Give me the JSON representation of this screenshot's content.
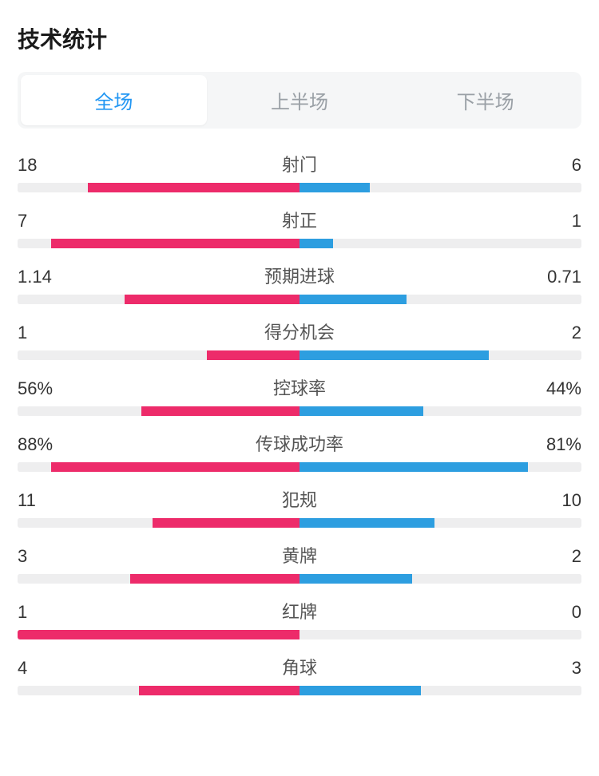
{
  "title": "技术统计",
  "tabs": [
    {
      "label": "全场",
      "active": true
    },
    {
      "label": "上半场",
      "active": false
    },
    {
      "label": "下半场",
      "active": false
    }
  ],
  "colors": {
    "left_bar": "#ed2b6a",
    "right_bar": "#2d9ee0",
    "track": "#eeeeef",
    "tab_bg": "#f5f6f7",
    "tab_active_text": "#2196f3",
    "tab_inactive_text": "#9aa0a6",
    "text": "#333333",
    "title_text": "#1a1a1a"
  },
  "typography": {
    "title_size": 28,
    "tab_size": 24,
    "value_size": 22
  },
  "stats": [
    {
      "name": "射门",
      "left_val": "18",
      "right_val": "6",
      "left_pct": 75,
      "right_pct": 25
    },
    {
      "name": "射正",
      "left_val": "7",
      "right_val": "1",
      "left_pct": 88,
      "right_pct": 12
    },
    {
      "name": "预期进球",
      "left_val": "1.14",
      "right_val": "0.71",
      "left_pct": 62,
      "right_pct": 38
    },
    {
      "name": "得分机会",
      "left_val": "1",
      "right_val": "2",
      "left_pct": 33,
      "right_pct": 67
    },
    {
      "name": "控球率",
      "left_val": "56%",
      "right_val": "44%",
      "left_pct": 56,
      "right_pct": 44
    },
    {
      "name": "传球成功率",
      "left_val": "88%",
      "right_val": "81%",
      "left_pct": 88,
      "right_pct": 81
    },
    {
      "name": "犯规",
      "left_val": "11",
      "right_val": "10",
      "left_pct": 52,
      "right_pct": 48
    },
    {
      "name": "黄牌",
      "left_val": "3",
      "right_val": "2",
      "left_pct": 60,
      "right_pct": 40
    },
    {
      "name": "红牌",
      "left_val": "1",
      "right_val": "0",
      "left_pct": 100,
      "right_pct": 0
    },
    {
      "name": "角球",
      "left_val": "4",
      "right_val": "3",
      "left_pct": 57,
      "right_pct": 43
    }
  ]
}
